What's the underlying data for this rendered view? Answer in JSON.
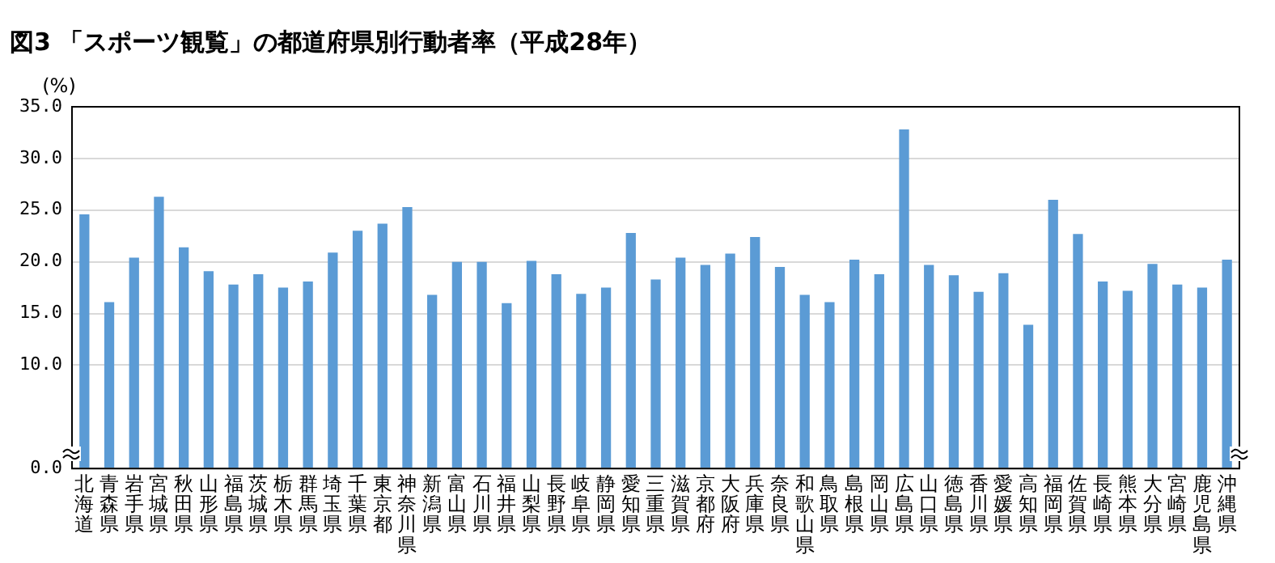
{
  "chart_data": {
    "type": "bar",
    "title": "図3 「スポーツ観覧」の都道府県別行動者率（平成28年）",
    "ylabel": "(%)",
    "categories": [
      "北海道",
      "青森県",
      "岩手県",
      "宮城県",
      "秋田県",
      "山形県",
      "福島県",
      "茨城県",
      "栃木県",
      "群馬県",
      "埼玉県",
      "千葉県",
      "東京都",
      "神奈川県",
      "新潟県",
      "富山県",
      "石川県",
      "福井県",
      "山梨県",
      "長野県",
      "岐阜県",
      "静岡県",
      "愛知県",
      "三重県",
      "滋賀県",
      "京都府",
      "大阪府",
      "兵庫県",
      "奈良県",
      "和歌山県",
      "鳥取県",
      "島根県",
      "岡山県",
      "広島県",
      "山口県",
      "徳島県",
      "香川県",
      "愛媛県",
      "高知県",
      "福岡県",
      "佐賀県",
      "長崎県",
      "熊本県",
      "大分県",
      "宮崎県",
      "鹿児島県",
      "沖縄県"
    ],
    "values": [
      24.6,
      16.1,
      20.4,
      26.3,
      21.4,
      19.1,
      17.8,
      18.8,
      17.5,
      18.1,
      20.9,
      23.0,
      23.7,
      25.3,
      16.8,
      20.0,
      20.0,
      16.0,
      20.1,
      18.8,
      16.9,
      17.5,
      22.8,
      18.3,
      20.4,
      19.7,
      20.8,
      22.4,
      19.5,
      16.8,
      16.1,
      20.2,
      18.8,
      32.8,
      19.7,
      18.7,
      17.1,
      18.9,
      13.9,
      26.0,
      22.7,
      18.1,
      17.2,
      19.8,
      17.8,
      17.5,
      20.2
    ],
    "color": "#5b9bd5",
    "ylim": [
      0,
      35
    ],
    "yticks": [
      {
        "value": 0,
        "label": "0.0"
      },
      {
        "value": 10,
        "label": "10.0"
      },
      {
        "value": 15,
        "label": "15.0"
      },
      {
        "value": 20,
        "label": "20.0"
      },
      {
        "value": 25,
        "label": "25.0"
      },
      {
        "value": 30,
        "label": "30.0"
      },
      {
        "value": 35,
        "label": "35.0"
      }
    ],
    "grid": "y",
    "legend": false
  }
}
